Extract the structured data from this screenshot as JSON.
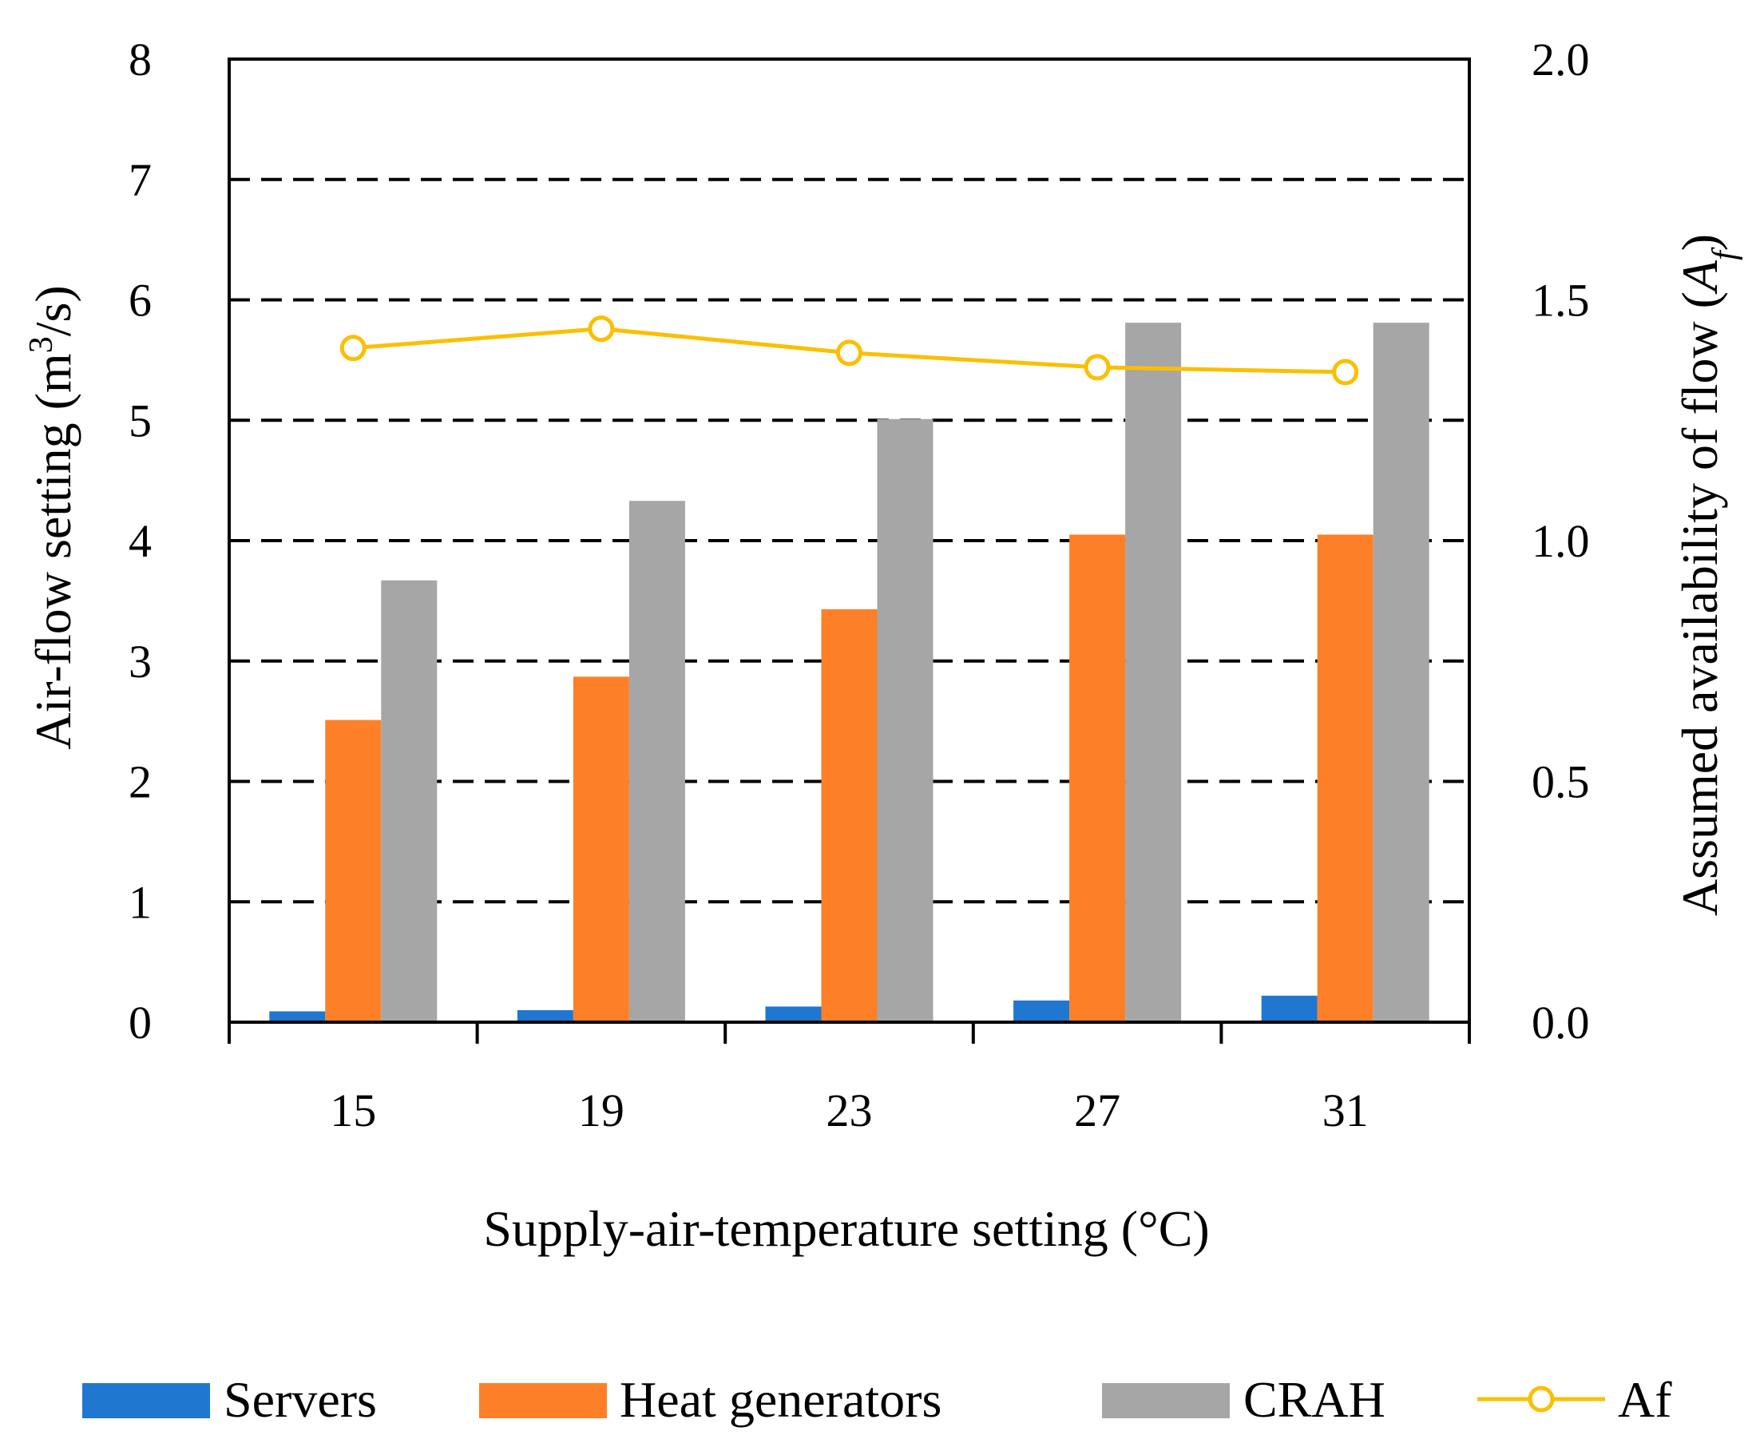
{
  "chart_data": {
    "type": "bar",
    "title": "",
    "xlabel": "Supply-air-temperature setting (°C)",
    "ylabel_left": {
      "prefix": "Air-flow setting (m",
      "sup": "3",
      "suffix": "/s)"
    },
    "ylabel_right": {
      "prefix": "Assumed availability of flow (",
      "italic": "A",
      "sub": "f",
      "suffix": ")"
    },
    "categories": [
      "15",
      "19",
      "23",
      "27",
      "31"
    ],
    "y_left": {
      "min": 0,
      "max": 8,
      "ticks": [
        "0",
        "1",
        "2",
        "3",
        "4",
        "5",
        "6",
        "7",
        "8"
      ],
      "gridlines": [
        1,
        2,
        3,
        4,
        5,
        6,
        7
      ]
    },
    "y_right": {
      "min": 0,
      "max": 2,
      "ticks": [
        "0.0",
        "0.5",
        "1.0",
        "1.5",
        "2.0"
      ]
    },
    "series": [
      {
        "name": "Servers",
        "axis": "left",
        "kind": "bar",
        "color": "#1f77d0",
        "values": [
          0.09,
          0.1,
          0.13,
          0.18,
          0.22
        ]
      },
      {
        "name": "Heat generators",
        "axis": "left",
        "kind": "bar",
        "color": "#fd8028",
        "values": [
          2.51,
          2.87,
          3.43,
          4.05,
          4.05
        ]
      },
      {
        "name": "CRAH",
        "axis": "left",
        "kind": "bar",
        "color": "#a6a6a6",
        "values": [
          3.67,
          4.33,
          5.01,
          5.81,
          5.81
        ]
      },
      {
        "name": "Af",
        "axis": "right",
        "kind": "line",
        "color": "#fbbf00",
        "values": [
          1.4,
          1.44,
          1.39,
          1.36,
          1.35
        ]
      }
    ],
    "legend": {
      "position": "bottom"
    },
    "grid": "dashed horizontal"
  }
}
